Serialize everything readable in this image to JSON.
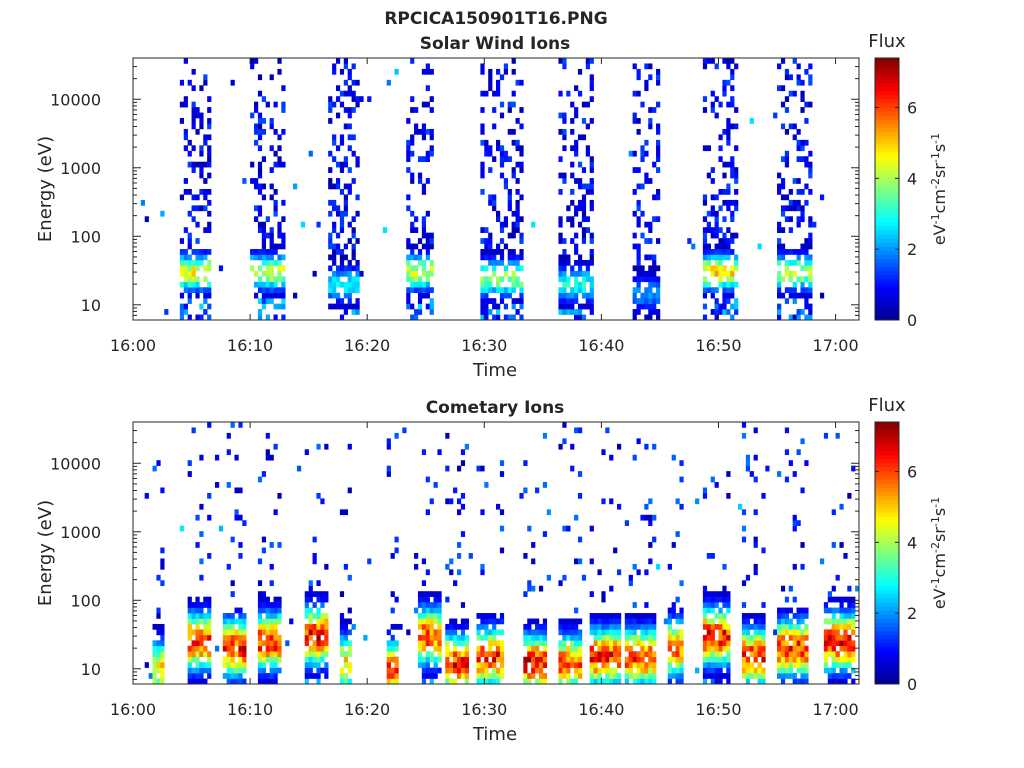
{
  "figure": {
    "suptitle": "RPCICA150901T16.PNG"
  },
  "colormap": [
    "#00008f",
    "#0000ff",
    "#0080ff",
    "#00ffff",
    "#80ff80",
    "#ffff00",
    "#ff8000",
    "#ff0000",
    "#800000"
  ],
  "chart_data": [
    {
      "type": "heatmap",
      "title": "Solar Wind Ions",
      "xlabel": "Time",
      "ylabel": "Energy (eV)",
      "y_scale": "log",
      "xlim": [
        "16:00",
        "17:02"
      ],
      "ylim": [
        6,
        40000
      ],
      "x_tick_labels": [
        "16:00",
        "16:10",
        "16:20",
        "16:30",
        "16:40",
        "16:50",
        "17:00"
      ],
      "y_tick_labels": [
        "10",
        "100",
        "1000",
        "10000"
      ],
      "colorbar": {
        "label": "Flux",
        "unit": "eV-1cm-2sr-1s-1",
        "range": [
          0,
          7.4
        ],
        "tick_labels": [
          "0",
          "2",
          "4",
          "6"
        ]
      },
      "bursts": [
        {
          "start": "16:04",
          "end": "16:06.5",
          "core_energy": 30,
          "core_flux": 5.0
        },
        {
          "start": "16:10",
          "end": "16:13",
          "core_energy": 30,
          "core_flux": 4.6
        },
        {
          "start": "16:16.5",
          "end": "16:19",
          "core_energy": 20,
          "core_flux": 3.0
        },
        {
          "start": "16:23",
          "end": "16:25.5",
          "core_energy": 30,
          "core_flux": 4.6
        },
        {
          "start": "16:29.5",
          "end": "16:33",
          "core_energy": 25,
          "core_flux": 4.4
        },
        {
          "start": "16:36",
          "end": "16:39",
          "core_energy": 20,
          "core_flux": 3.2
        },
        {
          "start": "16:42.5",
          "end": "16:45",
          "core_energy": 15,
          "core_flux": 2.2
        },
        {
          "start": "16:48.5",
          "end": "16:51.5",
          "core_energy": 30,
          "core_flux": 5.2
        },
        {
          "start": "16:55",
          "end": "16:58",
          "core_energy": 30,
          "core_flux": 4.4
        }
      ]
    },
    {
      "type": "heatmap",
      "title": "Cometary Ions",
      "xlabel": "Time",
      "ylabel": "Energy (eV)",
      "y_scale": "log",
      "xlim": [
        "16:00",
        "17:02"
      ],
      "ylim": [
        6,
        40000
      ],
      "x_tick_labels": [
        "16:00",
        "16:10",
        "16:20",
        "16:30",
        "16:40",
        "16:50",
        "17:00"
      ],
      "y_tick_labels": [
        "10",
        "100",
        "1000",
        "10000"
      ],
      "colorbar": {
        "label": "Flux",
        "unit": "eV-1cm-2sr-1s-1",
        "range": [
          0,
          7.4
        ],
        "tick_labels": [
          "0",
          "2",
          "4",
          "6"
        ]
      },
      "bursts": [
        {
          "start": "16:01.5",
          "end": "16:02.5",
          "core_energy": 10,
          "core_flux": 5.2
        },
        {
          "start": "16:04.5",
          "end": "16:06.5",
          "core_energy": 25,
          "core_flux": 6.8
        },
        {
          "start": "16:07.5",
          "end": "16:09.5",
          "core_energy": 20,
          "core_flux": 6.9
        },
        {
          "start": "16:10.5",
          "end": "16:12.5",
          "core_energy": 25,
          "core_flux": 6.8
        },
        {
          "start": "16:14.5",
          "end": "16:16.5",
          "core_energy": 30,
          "core_flux": 7.1
        },
        {
          "start": "16:17.5",
          "end": "16:18.5",
          "core_energy": 12,
          "core_flux": 5.4
        },
        {
          "start": "16:21.5",
          "end": "16:22.5",
          "core_energy": 10,
          "core_flux": 6.5
        },
        {
          "start": "16:24",
          "end": "16:26",
          "core_energy": 30,
          "core_flux": 6.6
        },
        {
          "start": "16:26.5",
          "end": "16:28.5",
          "core_energy": 12,
          "core_flux": 7.0
        },
        {
          "start": "16:29",
          "end": "16:31.5",
          "core_energy": 15,
          "core_flux": 6.8
        },
        {
          "start": "16:33",
          "end": "16:35",
          "core_energy": 12,
          "core_flux": 7.2
        },
        {
          "start": "16:36",
          "end": "16:38",
          "core_energy": 12,
          "core_flux": 6.4
        },
        {
          "start": "16:39",
          "end": "16:41.5",
          "core_energy": 15,
          "core_flux": 6.9
        },
        {
          "start": "16:42",
          "end": "16:44.5",
          "core_energy": 15,
          "core_flux": 6.7
        },
        {
          "start": "16:45.5",
          "end": "16:47",
          "core_energy": 20,
          "core_flux": 6.3
        },
        {
          "start": "16:48.5",
          "end": "16:51",
          "core_energy": 30,
          "core_flux": 6.9
        },
        {
          "start": "16:52",
          "end": "16:54",
          "core_energy": 15,
          "core_flux": 6.8
        },
        {
          "start": "16:55",
          "end": "16:57.5",
          "core_energy": 20,
          "core_flux": 6.7
        },
        {
          "start": "16:59",
          "end": "17:01.5",
          "core_energy": 25,
          "core_flux": 7.1
        }
      ]
    }
  ]
}
